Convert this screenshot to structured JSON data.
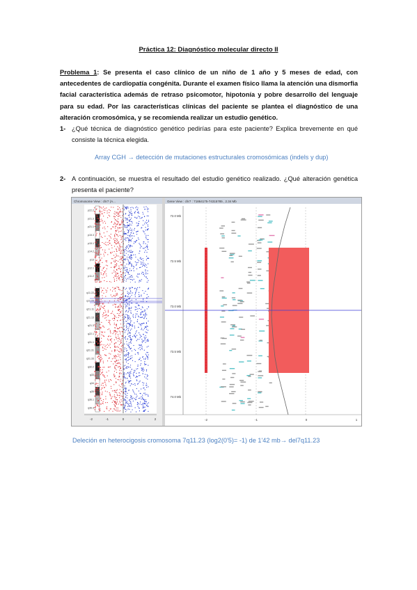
{
  "title": "Práctica 12: Diagnóstico molecular directo II",
  "problem": {
    "label": "Problema 1",
    "text": ": Se presenta el caso clínico de un niño de 1 año y 5 meses de edad, con antecedentes de cardiopatía congénita.  Durante el examen físico llama la atención una dismorfia facial característica además de retraso psicomotor, hipotonía y pobre desarrollo del lenguaje para su edad. Por las características clínicas del paciente se plantea el  diagnóstico de una alteración cromosómica, y se recomienda realizar un estudio genético."
  },
  "questions": [
    {
      "num": "1-",
      "text": "¿Qué técnica de diagnóstico genético pedirías para este paciente? Explica brevemente en qué consiste la técnica elegida.",
      "answer": "Array CGH → detección de mutaciones estructurales cromosómicas (indels y dup)"
    },
    {
      "num": "2-",
      "text": "A continuación, se muestra el resultado del estudio genético realizado. ¿Qué alteración genética presenta el paciente?",
      "answer": "Deleción en heterocigosis cromosoma 7q11.23 (log2(0'5)= -1) de 1'42 mb→ del7q11.23"
    }
  ],
  "figure": {
    "left_panel_title": "Chromosome View : chr7 (A...",
    "right_panel_title": "Gene View : chr7 : 71864175-74315785 , 2.34 Mb",
    "bands": [
      "p22.2",
      "p21.3",
      "p21.1",
      "p15.3",
      "p15.1",
      "p14.2",
      "p13",
      "p12.1",
      "p11.2",
      "q11.21",
      "q11.22",
      "q11.23",
      "q21.11",
      "q21.13",
      "q21.3",
      "q22.1",
      "q31.1",
      "q31.31",
      "q31.33",
      "q32.2",
      "q33",
      "q34",
      "q35",
      "q36.1",
      "q36.3"
    ],
    "left_axis_ticks": [
      "-2",
      "-1",
      "0",
      "1",
      "2"
    ],
    "right_y_ticks": [
      "72.0 Mb",
      "72.5 Mb",
      "73.0 Mb",
      "73.5 Mb",
      "74.0 Mb"
    ],
    "right_x_ticks": [
      "-2",
      "-1",
      "0",
      "1"
    ],
    "highlight_color": "#f25c5c",
    "bar_color": "#e8323a",
    "marker_color": "#3b3bd6"
  }
}
